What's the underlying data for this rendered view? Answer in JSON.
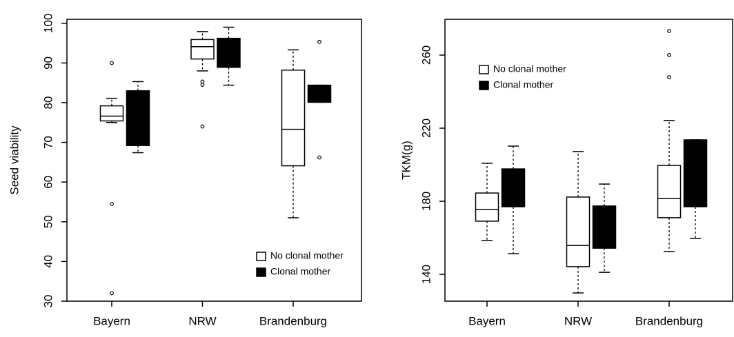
{
  "chart_data": [
    {
      "type": "box",
      "ylabel": "Seed viability",
      "categories": [
        "Bayern",
        "NRW",
        "Brandenburg"
      ],
      "series": [
        {
          "name": "No clonal mother",
          "color": "#ffffff",
          "values": [
            {
              "min": 75,
              "q1": 75.4,
              "median": 76.6,
              "q3": 79.2,
              "max": 81.1,
              "outliers": [
                90,
                54.5,
                32
              ]
            },
            {
              "min": 88,
              "q1": 91,
              "median": 94.1,
              "q3": 95.9,
              "max": 97.9,
              "outliers": [
                85.3,
                84.5,
                74
              ]
            },
            {
              "min": 51,
              "q1": 64.1,
              "median": 73.3,
              "q3": 88.2,
              "max": 93.3,
              "outliers": []
            }
          ]
        },
        {
          "name": "Clonal mother",
          "color": "#000000",
          "values": [
            {
              "min": 67.4,
              "q1": 69.2,
              "median": 76,
              "q3": 83,
              "max": 85.3,
              "outliers": []
            },
            {
              "min": 84.4,
              "q1": 88.9,
              "median": 93,
              "q3": 96.2,
              "max": 99,
              "outliers": []
            },
            {
              "min": 80.1,
              "q1": 80.1,
              "median": 82,
              "q3": 84.4,
              "max": 84.4,
              "outliers": [
                95.3,
                66.2
              ]
            }
          ]
        }
      ],
      "ylim": [
        30,
        101
      ],
      "yticks": [
        30,
        40,
        50,
        60,
        70,
        80,
        90,
        100
      ],
      "legend": "lower right"
    },
    {
      "type": "box",
      "ylabel": "TKM(g)",
      "categories": [
        "Bayern",
        "NRW",
        "Brandenburg"
      ],
      "series": [
        {
          "name": "No clonal mother",
          "color": "#ffffff",
          "values": [
            {
              "min": 158.5,
              "q1": 169.1,
              "median": 175.5,
              "q3": 184.5,
              "max": 200.8,
              "outliers": []
            },
            {
              "min": 129.8,
              "q1": 144.2,
              "median": 155.8,
              "q3": 182.3,
              "max": 207.2,
              "outliers": []
            },
            {
              "min": 152.5,
              "q1": 171,
              "median": 181.5,
              "q3": 199.6,
              "max": 224.2,
              "outliers": [
                247.9,
                260,
                273.2
              ]
            }
          ]
        },
        {
          "name": "Clonal mother",
          "color": "#000000",
          "values": [
            {
              "min": 151.3,
              "q1": 177,
              "median": 186,
              "q3": 197.7,
              "max": 210.2,
              "outliers": []
            },
            {
              "min": 141.1,
              "q1": 154.3,
              "median": 165,
              "q3": 177.4,
              "max": 189.4,
              "outliers": []
            },
            {
              "min": 159.6,
              "q1": 177,
              "median": 195,
              "q3": 213.6,
              "max": 213.6,
              "outliers": []
            }
          ]
        }
      ],
      "ylim": [
        125.3,
        279.6
      ],
      "yticks": [
        140,
        180,
        220,
        260
      ],
      "legend": "upper left"
    }
  ]
}
